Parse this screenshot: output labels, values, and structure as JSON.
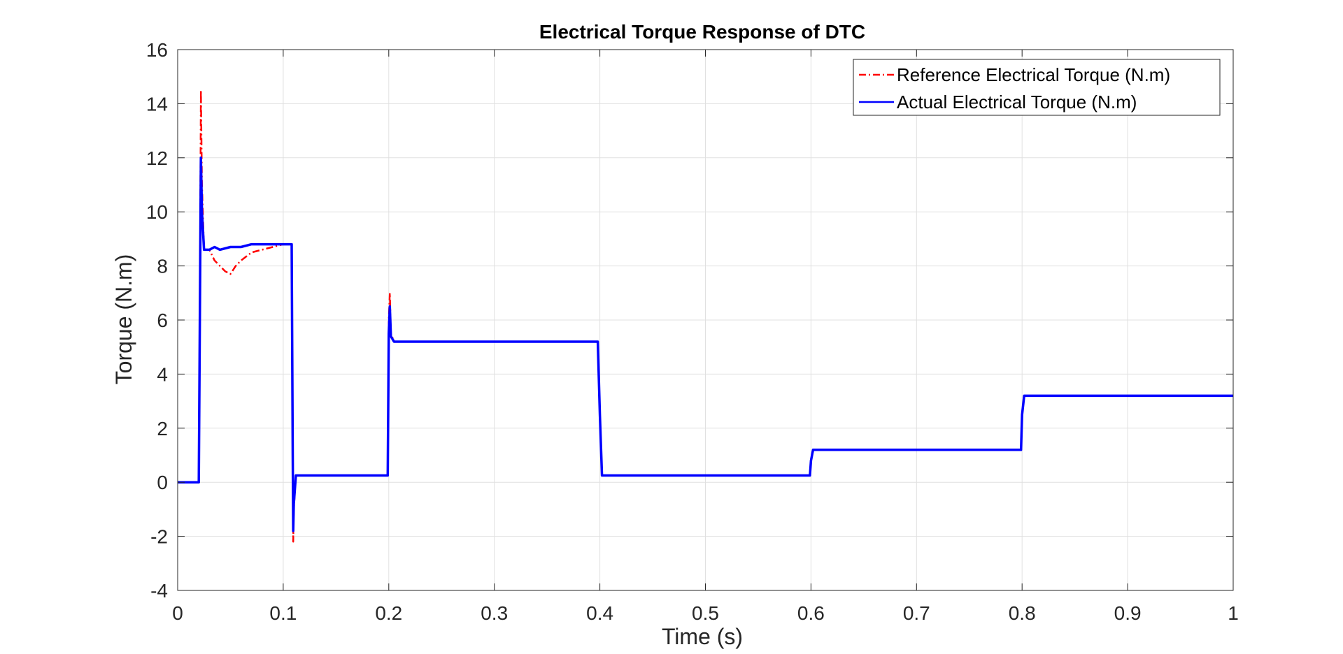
{
  "chart_data": {
    "type": "line",
    "title": "Electrical Torque Response of DTC",
    "xlabel": "Time (s)",
    "ylabel": "Torque (N.m)",
    "xlim": [
      0,
      1
    ],
    "ylim": [
      -4,
      16
    ],
    "xticks": [
      0,
      0.1,
      0.2,
      0.3,
      0.4,
      0.5,
      0.6,
      0.7,
      0.8,
      0.9,
      1
    ],
    "xtick_labels": [
      "0",
      "0.1",
      "0.2",
      "0.3",
      "0.4",
      "0.5",
      "0.6",
      "0.7",
      "0.8",
      "0.9",
      "1"
    ],
    "yticks": [
      -4,
      -2,
      0,
      2,
      4,
      6,
      8,
      10,
      12,
      14,
      16
    ],
    "ytick_labels": [
      "-4",
      "-2",
      "0",
      "2",
      "4",
      "6",
      "8",
      "10",
      "12",
      "14",
      "16"
    ],
    "grid": true,
    "legend_position": "top-right",
    "series": [
      {
        "name": "Reference Electrical Torque (N.m)",
        "color": "#ff0000",
        "style": "dash-dot",
        "x": [
          0,
          0.02,
          0.021,
          0.022,
          0.023,
          0.025,
          0.03,
          0.035,
          0.04,
          0.045,
          0.05,
          0.055,
          0.06,
          0.07,
          0.08,
          0.09,
          0.1,
          0.108,
          0.109,
          0.1095,
          0.11,
          0.112,
          0.115,
          0.15,
          0.199,
          0.2,
          0.201,
          0.202,
          0.205,
          0.25,
          0.3,
          0.35,
          0.398,
          0.4,
          0.402,
          0.45,
          0.5,
          0.55,
          0.599,
          0.6,
          0.602,
          0.65,
          0.7,
          0.75,
          0.799,
          0.8,
          0.802,
          0.85,
          0.9,
          0.95,
          1.0
        ],
        "y": [
          0,
          0,
          6,
          14.5,
          11,
          8.6,
          8.6,
          8.2,
          8.0,
          7.8,
          7.7,
          8.0,
          8.2,
          8.5,
          8.6,
          8.7,
          8.8,
          8.8,
          1.0,
          -2.2,
          -1.0,
          0.25,
          0.25,
          0.25,
          0.25,
          6.0,
          7.0,
          5.5,
          5.2,
          5.2,
          5.2,
          5.2,
          5.2,
          2.5,
          0.25,
          0.25,
          0.25,
          0.25,
          0.25,
          0.8,
          1.2,
          1.2,
          1.2,
          1.2,
          1.2,
          2.5,
          3.2,
          3.2,
          3.2,
          3.2,
          3.2
        ]
      },
      {
        "name": "Actual Electrical Torque (N.m)",
        "color": "#0000ff",
        "style": "solid",
        "x": [
          0,
          0.02,
          0.021,
          0.022,
          0.023,
          0.025,
          0.03,
          0.035,
          0.04,
          0.05,
          0.06,
          0.07,
          0.08,
          0.09,
          0.1,
          0.108,
          0.109,
          0.1095,
          0.11,
          0.112,
          0.115,
          0.15,
          0.199,
          0.2,
          0.201,
          0.202,
          0.205,
          0.25,
          0.3,
          0.35,
          0.398,
          0.4,
          0.402,
          0.45,
          0.5,
          0.55,
          0.599,
          0.6,
          0.602,
          0.65,
          0.7,
          0.75,
          0.799,
          0.8,
          0.802,
          0.85,
          0.9,
          0.95,
          1.0
        ],
        "y": [
          0,
          0,
          6,
          12,
          10,
          8.6,
          8.6,
          8.7,
          8.6,
          8.7,
          8.7,
          8.8,
          8.8,
          8.8,
          8.8,
          8.8,
          1.0,
          -1.8,
          -0.8,
          0.25,
          0.25,
          0.25,
          0.25,
          5.5,
          6.5,
          5.4,
          5.2,
          5.2,
          5.2,
          5.2,
          5.2,
          2.5,
          0.25,
          0.25,
          0.25,
          0.25,
          0.25,
          0.8,
          1.2,
          1.2,
          1.2,
          1.2,
          1.2,
          2.5,
          3.2,
          3.2,
          3.2,
          3.2,
          3.2
        ]
      }
    ]
  }
}
